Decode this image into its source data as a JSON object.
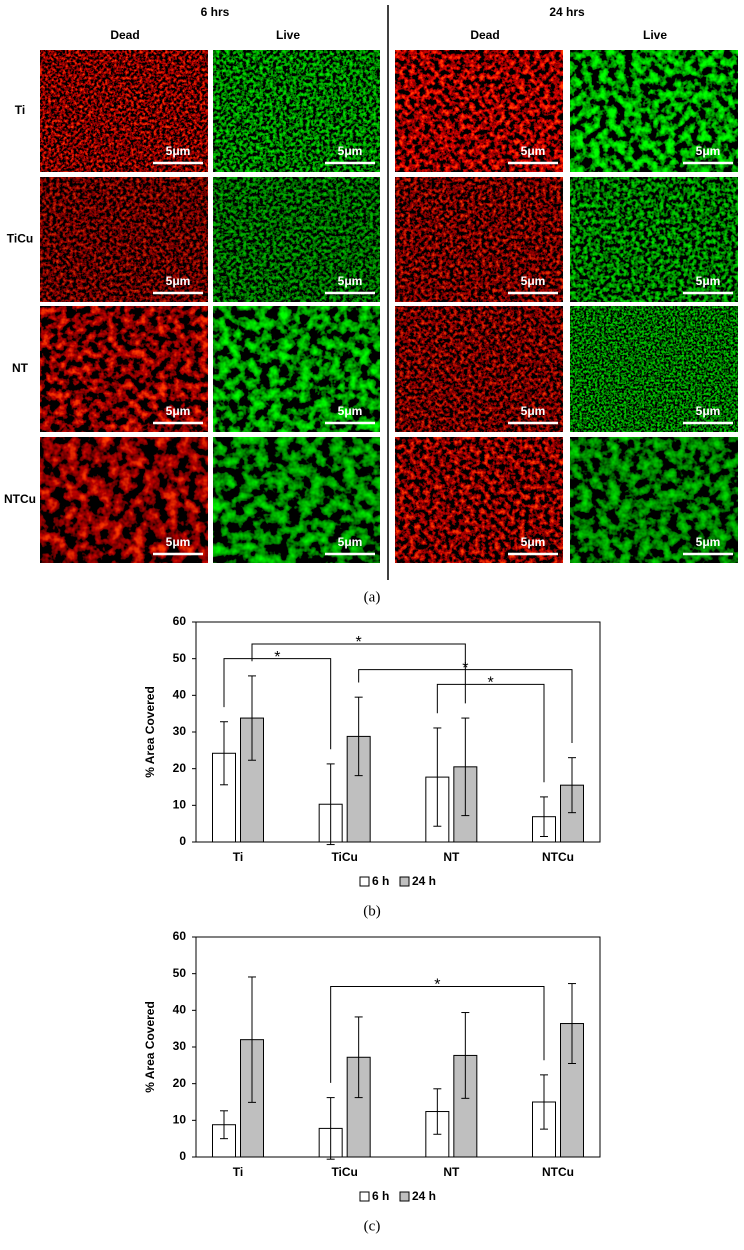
{
  "figure_a": {
    "time_headers": [
      "6 hrs",
      "24 hrs"
    ],
    "column_labels": [
      "Dead",
      "Live",
      "Dead",
      "Live"
    ],
    "rows": [
      {
        "label": "Ti",
        "scale_bars": [
          "5μm",
          "5μm",
          "5μm",
          "5μm"
        ]
      },
      {
        "label": "TiCu",
        "scale_bars": [
          "5μm",
          "5μm",
          "5μm",
          "5μm"
        ]
      },
      {
        "label": "NT",
        "scale_bars": [
          "5μm",
          "5μm",
          "5μm",
          "5μm"
        ]
      },
      {
        "label": "NTCu",
        "scale_bars": [
          "5μm",
          "5μm",
          "5μm",
          "5μm"
        ]
      }
    ],
    "caption": "(a)"
  },
  "chart_data": [
    {
      "type": "bar",
      "y_label": "% Area Covered",
      "categories": [
        "Ti",
        "TiCu",
        "NT",
        "NTCu"
      ],
      "ylim": [
        0,
        60
      ],
      "yticks": [
        0,
        10,
        20,
        30,
        40,
        50,
        60
      ],
      "series": [
        {
          "name": "6 h",
          "color": "#ffffff",
          "values": [
            24.2,
            10.3,
            17.7,
            6.9
          ],
          "errors": [
            8.6,
            11.0,
            13.4,
            5.4
          ]
        },
        {
          "name": "24 h",
          "color": "#bfbfbf",
          "values": [
            33.8,
            28.8,
            20.5,
            15.5
          ],
          "errors": [
            11.5,
            10.7,
            13.3,
            7.5
          ]
        }
      ],
      "significance": [
        {
          "label": "*",
          "y": 50,
          "from": [
            "Ti",
            "6 h"
          ],
          "to": [
            "TiCu",
            "6 h"
          ]
        },
        {
          "label": "*",
          "y": 54,
          "from": [
            "Ti",
            "24 h"
          ],
          "to": [
            "NT",
            "24 h"
          ]
        },
        {
          "label": "*",
          "y": 47,
          "from": [
            "TiCu",
            "24 h"
          ],
          "to": [
            "NTCu",
            "24 h"
          ]
        },
        {
          "label": "*",
          "y": 43,
          "from": [
            "NT",
            "6 h"
          ],
          "to": [
            "NTCu",
            "6 h"
          ]
        }
      ],
      "caption": "(b)"
    },
    {
      "type": "bar",
      "y_label": "% Area Covered",
      "categories": [
        "Ti",
        "TiCu",
        "NT",
        "NTCu"
      ],
      "ylim": [
        0,
        60
      ],
      "yticks": [
        0,
        10,
        20,
        30,
        40,
        50,
        60
      ],
      "series": [
        {
          "name": "6 h",
          "color": "#ffffff",
          "values": [
            8.8,
            7.8,
            12.4,
            15.0
          ],
          "errors": [
            3.8,
            8.4,
            6.2,
            7.4
          ]
        },
        {
          "name": "24 h",
          "color": "#bfbfbf",
          "values": [
            32.0,
            27.2,
            27.7,
            36.4
          ],
          "errors": [
            17.1,
            11.0,
            11.7,
            10.9
          ]
        }
      ],
      "significance": [
        {
          "label": "*",
          "y": 46.5,
          "from": [
            "TiCu",
            "6 h"
          ],
          "to": [
            "NTCu",
            "6 h"
          ]
        }
      ],
      "caption": "(c)"
    }
  ]
}
